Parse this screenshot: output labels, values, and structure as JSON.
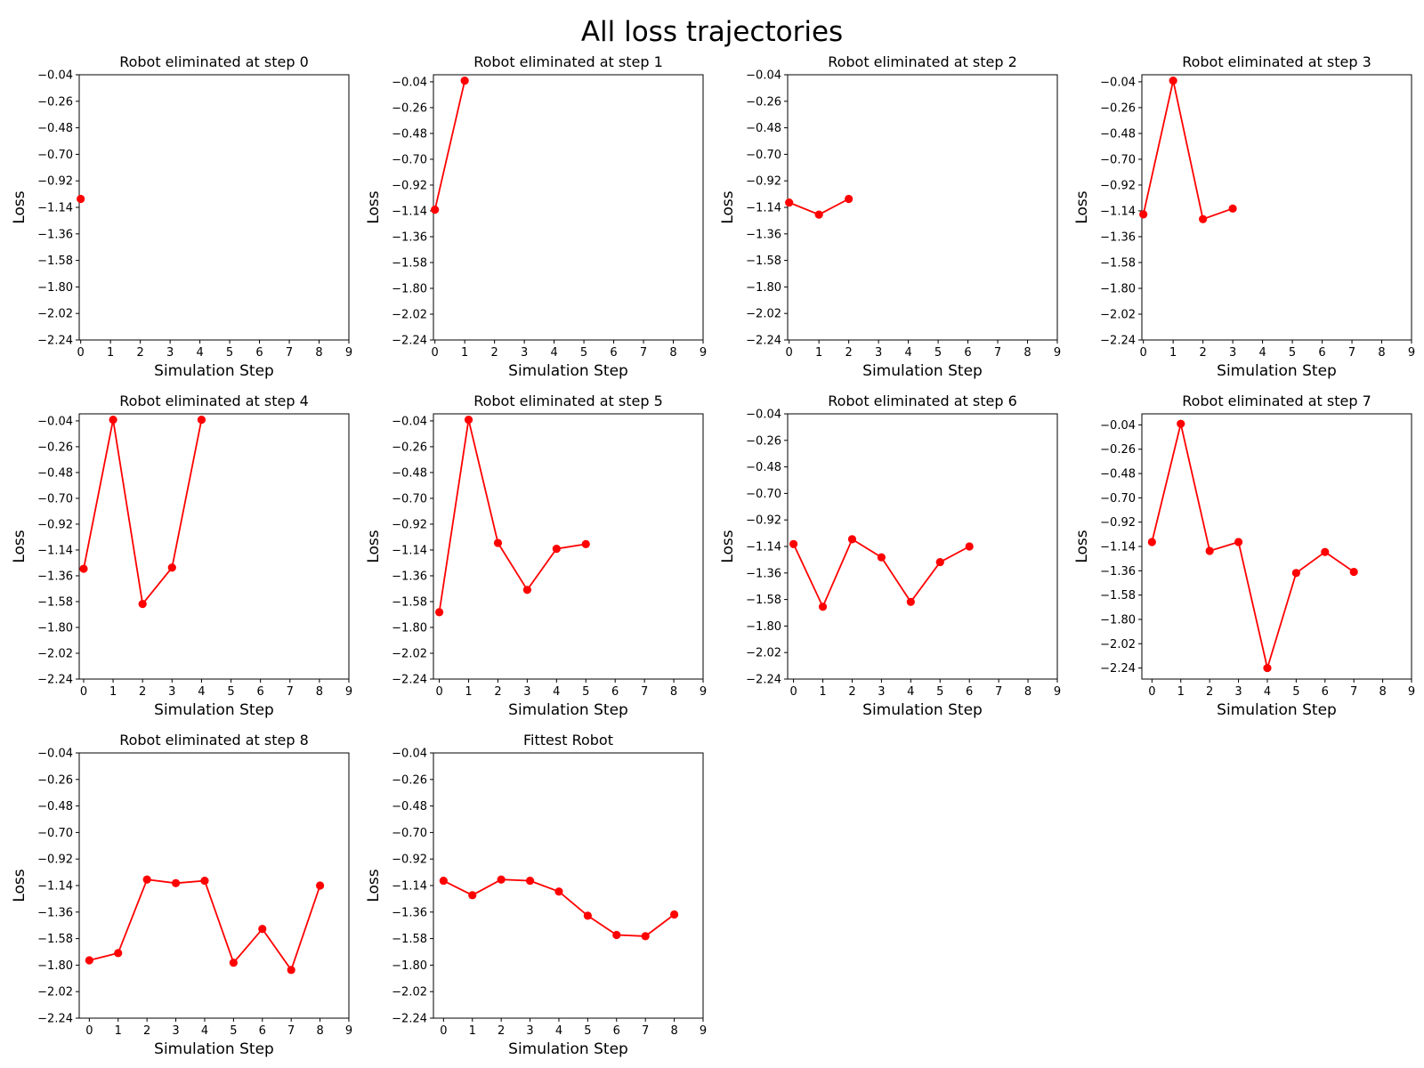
{
  "suptitle": "All loss trajectories",
  "colors": {
    "line": "#ff0000",
    "axis": "#000000"
  },
  "chart_data": [
    {
      "type": "line",
      "title": "Robot eliminated at step 0",
      "xlabel": "Simulation Step",
      "ylabel": "Loss",
      "xlim": [
        -0.05,
        9
      ],
      "ylim": [
        -2.24,
        -0.04
      ],
      "xticks": [
        "0",
        "1",
        "2",
        "3",
        "4",
        "5",
        "6",
        "7",
        "8",
        "9"
      ],
      "yticks": [
        "-0.04",
        "-0.26",
        "-0.48",
        "-0.70",
        "-0.92",
        "-1.14",
        "-1.36",
        "-1.58",
        "-1.80",
        "-2.02",
        "-2.24"
      ],
      "x": [
        0
      ],
      "values": [
        -1.07
      ]
    },
    {
      "type": "line",
      "title": "Robot eliminated at step 1",
      "xlabel": "Simulation Step",
      "ylabel": "Loss",
      "xlim": [
        -0.05,
        9
      ],
      "ylim": [
        -2.24,
        0.02
      ],
      "xticks": [
        "0",
        "1",
        "2",
        "3",
        "4",
        "5",
        "6",
        "7",
        "8",
        "9"
      ],
      "yticks": [
        "-0.04",
        "-0.26",
        "-0.48",
        "-0.70",
        "-0.92",
        "-1.14",
        "-1.36",
        "-1.58",
        "-1.80",
        "-2.02",
        "-2.24"
      ],
      "x": [
        0,
        1
      ],
      "values": [
        -1.13,
        -0.03
      ]
    },
    {
      "type": "line",
      "title": "Robot eliminated at step 2",
      "xlabel": "Simulation Step",
      "ylabel": "Loss",
      "xlim": [
        -0.05,
        9
      ],
      "ylim": [
        -2.24,
        -0.04
      ],
      "xticks": [
        "0",
        "1",
        "2",
        "3",
        "4",
        "5",
        "6",
        "7",
        "8",
        "9"
      ],
      "yticks": [
        "-0.04",
        "-0.26",
        "-0.48",
        "-0.70",
        "-0.92",
        "-1.14",
        "-1.36",
        "-1.58",
        "-1.80",
        "-2.02",
        "-2.24"
      ],
      "x": [
        0,
        1,
        2
      ],
      "values": [
        -1.1,
        -1.2,
        -1.07
      ]
    },
    {
      "type": "line",
      "title": "Robot eliminated at step 3",
      "xlabel": "Simulation Step",
      "ylabel": "Loss",
      "xlim": [
        -0.05,
        9
      ],
      "ylim": [
        -2.24,
        0.02
      ],
      "xticks": [
        "0",
        "1",
        "2",
        "3",
        "4",
        "5",
        "6",
        "7",
        "8",
        "9"
      ],
      "yticks": [
        "-0.04",
        "-0.26",
        "-0.48",
        "-0.70",
        "-0.92",
        "-1.14",
        "-1.36",
        "-1.58",
        "-1.80",
        "-2.02",
        "-2.24"
      ],
      "x": [
        0,
        1,
        2,
        3
      ],
      "values": [
        -1.17,
        -0.03,
        -1.21,
        -1.12
      ]
    },
    {
      "type": "line",
      "title": "Robot eliminated at step 4",
      "xlabel": "Simulation Step",
      "ylabel": "Loss",
      "xlim": [
        -0.15,
        9
      ],
      "ylim": [
        -2.24,
        0.02
      ],
      "xticks": [
        "0",
        "1",
        "2",
        "3",
        "4",
        "5",
        "6",
        "7",
        "8",
        "9"
      ],
      "yticks": [
        "-0.04",
        "-0.26",
        "-0.48",
        "-0.70",
        "-0.92",
        "-1.14",
        "-1.36",
        "-1.58",
        "-1.80",
        "-2.02",
        "-2.24"
      ],
      "x": [
        0,
        1,
        2,
        3,
        4
      ],
      "values": [
        -1.3,
        -0.03,
        -1.6,
        -1.29,
        -0.03
      ]
    },
    {
      "type": "line",
      "title": "Robot eliminated at step 5",
      "xlabel": "Simulation Step",
      "ylabel": "Loss",
      "xlim": [
        -0.2,
        9
      ],
      "ylim": [
        -2.24,
        0.02
      ],
      "xticks": [
        "0",
        "1",
        "2",
        "3",
        "4",
        "5",
        "6",
        "7",
        "8",
        "9"
      ],
      "yticks": [
        "-0.04",
        "-0.26",
        "-0.48",
        "-0.70",
        "-0.92",
        "-1.14",
        "-1.36",
        "-1.58",
        "-1.80",
        "-2.02",
        "-2.24"
      ],
      "x": [
        0,
        1,
        2,
        3,
        4,
        5
      ],
      "values": [
        -1.67,
        -0.03,
        -1.08,
        -1.48,
        -1.13,
        -1.09
      ]
    },
    {
      "type": "line",
      "title": "Robot eliminated at step 6",
      "xlabel": "Simulation Step",
      "ylabel": "Loss",
      "xlim": [
        -0.2,
        9
      ],
      "ylim": [
        -2.24,
        -0.04
      ],
      "xticks": [
        "0",
        "1",
        "2",
        "3",
        "4",
        "5",
        "6",
        "7",
        "8",
        "9"
      ],
      "yticks": [
        "-0.04",
        "-0.26",
        "-0.48",
        "-0.70",
        "-0.92",
        "-1.14",
        "-1.36",
        "-1.58",
        "-1.80",
        "-2.02",
        "-2.24"
      ],
      "x": [
        0,
        1,
        2,
        3,
        4,
        5,
        6
      ],
      "values": [
        -1.12,
        -1.64,
        -1.08,
        -1.23,
        -1.6,
        -1.27,
        -1.14
      ]
    },
    {
      "type": "line",
      "title": "Robot eliminated at step 7",
      "xlabel": "Simulation Step",
      "ylabel": "Loss",
      "xlim": [
        -0.35,
        9
      ],
      "ylim": [
        -2.34,
        0.06
      ],
      "xticks": [
        "0",
        "1",
        "2",
        "3",
        "4",
        "5",
        "6",
        "7",
        "8",
        "9"
      ],
      "yticks": [
        "-0.04",
        "-0.26",
        "-0.48",
        "-0.70",
        "-0.92",
        "-1.14",
        "-1.36",
        "-1.58",
        "-1.80",
        "-2.02",
        "-2.24"
      ],
      "x": [
        0,
        1,
        2,
        3,
        4,
        5,
        6,
        7
      ],
      "values": [
        -1.1,
        -0.03,
        -1.18,
        -1.1,
        -2.24,
        -1.38,
        -1.19,
        -1.37
      ]
    },
    {
      "type": "line",
      "title": "Robot eliminated at step 8",
      "xlabel": "Simulation Step",
      "ylabel": "Loss",
      "xlim": [
        -0.35,
        9
      ],
      "ylim": [
        -2.24,
        -0.04
      ],
      "xticks": [
        "0",
        "1",
        "2",
        "3",
        "4",
        "5",
        "6",
        "7",
        "8",
        "9"
      ],
      "yticks": [
        "-0.04",
        "-0.26",
        "-0.48",
        "-0.70",
        "-0.92",
        "-1.14",
        "-1.36",
        "-1.58",
        "-1.80",
        "-2.02",
        "-2.24"
      ],
      "x": [
        0,
        1,
        2,
        3,
        4,
        5,
        6,
        7,
        8
      ],
      "values": [
        -1.76,
        -1.7,
        -1.09,
        -1.12,
        -1.1,
        -1.78,
        -1.5,
        -1.84,
        -1.14
      ]
    },
    {
      "type": "line",
      "title": "Fittest Robot",
      "xlabel": "Simulation Step",
      "ylabel": "Loss",
      "xlim": [
        -0.35,
        9
      ],
      "ylim": [
        -2.24,
        -0.04
      ],
      "xticks": [
        "0",
        "1",
        "2",
        "3",
        "4",
        "5",
        "6",
        "7",
        "8",
        "9"
      ],
      "yticks": [
        "-0.04",
        "-0.26",
        "-0.48",
        "-0.70",
        "-0.92",
        "-1.14",
        "-1.36",
        "-1.58",
        "-1.80",
        "-2.02",
        "-2.24"
      ],
      "x": [
        0,
        1,
        2,
        3,
        4,
        5,
        6,
        7,
        8
      ],
      "values": [
        -1.1,
        -1.22,
        -1.09,
        -1.1,
        -1.19,
        -1.39,
        -1.55,
        -1.56,
        -1.38
      ]
    }
  ]
}
